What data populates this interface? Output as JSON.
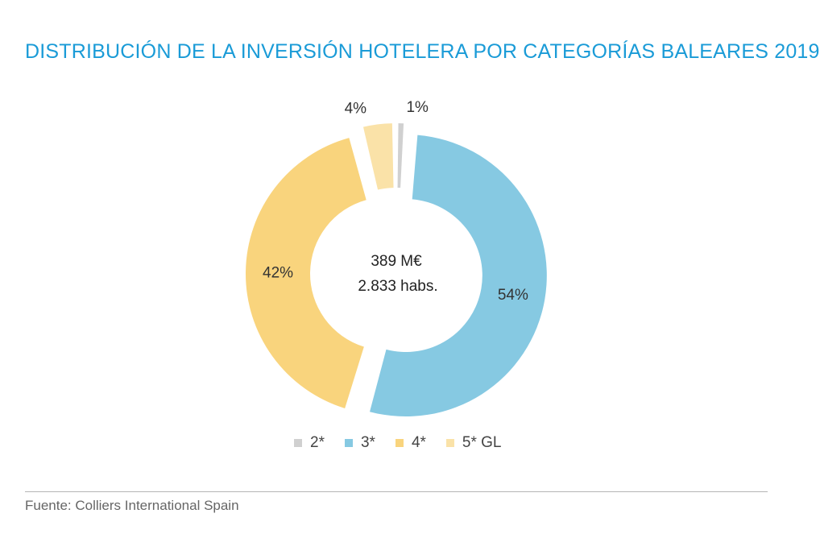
{
  "title": "DISTRIBUCIÓN DE LA INVERSIÓN HOTELERA POR CATEGORÍAS BALEARES 2019",
  "chart_data": {
    "type": "pie",
    "variant": "donut",
    "categories": [
      "2*",
      "3*",
      "4*",
      "5* GL"
    ],
    "values": [
      1,
      54,
      42,
      4
    ],
    "labels": [
      "1%",
      "54%",
      "42%",
      "4%"
    ],
    "colors": [
      "#d0d0d0",
      "#86c9e2",
      "#f9d47d",
      "#fae2a8"
    ],
    "center_text": [
      "389 M€",
      "2.833 habs."
    ],
    "legend_position": "bottom"
  },
  "source": "Fuente: Colliers International Spain"
}
